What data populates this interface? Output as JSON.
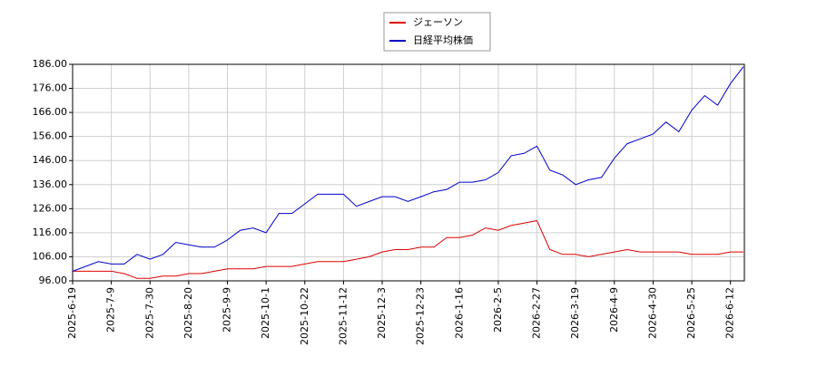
{
  "chart_data": {
    "type": "line",
    "categories": [
      "2025-6-19",
      null,
      null,
      "2025-7-9",
      null,
      null,
      "2025-7-30",
      null,
      null,
      "2025-8-20",
      null,
      null,
      "2025-9-9",
      null,
      null,
      "2025-10-1",
      null,
      null,
      "2025-10-22",
      null,
      null,
      "2025-11-12",
      null,
      null,
      "2025-12-3",
      null,
      null,
      "2025-12-23",
      null,
      null,
      "2026-1-16",
      null,
      null,
      "2026-2-5",
      null,
      null,
      "2026-2-27",
      null,
      null,
      "2026-3-19",
      null,
      null,
      "2026-4-9",
      null,
      null,
      "2026-4-30",
      null,
      null,
      "2026-5-25",
      null,
      null,
      "2026-6-12",
      null
    ],
    "series": [
      {
        "name": "ジェーソン",
        "color": "#dd0000",
        "values": [
          100,
          100,
          100,
          100,
          99,
          97,
          97,
          98,
          98,
          99,
          99,
          100,
          101,
          101,
          101,
          102,
          102,
          102,
          103,
          104,
          104,
          104,
          105,
          106,
          108,
          109,
          109,
          110,
          110,
          114,
          114,
          115,
          118,
          117,
          119,
          120,
          121,
          109,
          107,
          107,
          106,
          107,
          108,
          109,
          108,
          108,
          108,
          108,
          107,
          107,
          107,
          108,
          108
        ]
      },
      {
        "name": "日経平均株価",
        "color": "#0000cc",
        "values": [
          100,
          102,
          104,
          103,
          103,
          107,
          105,
          107,
          112,
          111,
          110,
          110,
          113,
          117,
          118,
          116,
          124,
          124,
          128,
          132,
          132,
          132,
          127,
          129,
          131,
          131,
          129,
          131,
          133,
          134,
          137,
          137,
          138,
          141,
          148,
          149,
          152,
          142,
          140,
          136,
          138,
          139,
          147,
          153,
          155,
          157,
          162,
          158,
          167,
          173,
          169,
          178,
          185
        ]
      }
    ],
    "ylim": [
      96,
      186
    ],
    "yticks": [
      {
        "value": 96,
        "label": "96.00"
      },
      {
        "value": 106,
        "label": "106.00"
      },
      {
        "value": 116,
        "label": "116.00"
      },
      {
        "value": 126,
        "label": "126.00"
      },
      {
        "value": 136,
        "label": "136.00"
      },
      {
        "value": 146,
        "label": "146.00"
      },
      {
        "value": 156,
        "label": "156.00"
      },
      {
        "value": 166,
        "label": "166.00"
      },
      {
        "value": 176,
        "label": "176.00"
      },
      {
        "value": 186,
        "label": "186.00"
      }
    ],
    "grid": true
  }
}
